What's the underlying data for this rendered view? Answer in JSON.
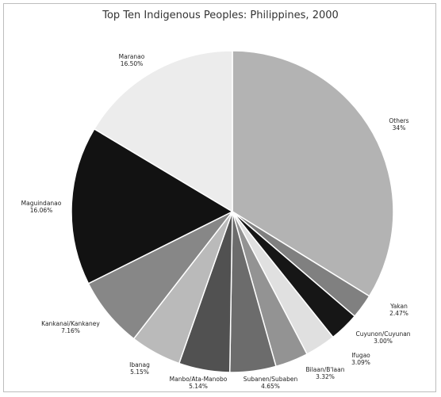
{
  "chart_data": {
    "type": "pie",
    "title": "Top Ten Indigenous Peoples: Philippines, 2000",
    "slices": [
      {
        "name": "Others",
        "value_label": "34%",
        "value": 34,
        "color": "#b3b3b3"
      },
      {
        "name": "Yakan",
        "value_label": "2.47%",
        "value": 2.47,
        "color": "#808080"
      },
      {
        "name": "Cuyunon/Cuyunan",
        "value_label": "3.00%",
        "value": 3.0,
        "color": "#161616"
      },
      {
        "name": "Ifugao",
        "value_label": "3.09%",
        "value": 3.09,
        "color": "#e0e0e0"
      },
      {
        "name": "Bilaan/B'laan",
        "value_label": "3.32%",
        "value": 3.32,
        "color": "#939393"
      },
      {
        "name": "Subanen/Subaben",
        "value_label": "4.65%",
        "value": 4.65,
        "color": "#6c6c6c"
      },
      {
        "name": "Manbo/Ata-Manobo",
        "value_label": "5.14%",
        "value": 5.14,
        "color": "#515151"
      },
      {
        "name": "Ibanag",
        "value_label": "5.15%",
        "value": 5.15,
        "color": "#bababa"
      },
      {
        "name": "Kankanai/Kankaney",
        "value_label": "7.16%",
        "value": 7.16,
        "color": "#878787"
      },
      {
        "name": "Maguindanao",
        "value_label": "16.06%",
        "value": 16.06,
        "color": "#121212"
      },
      {
        "name": "Maranao",
        "value_label": "16.50%",
        "value": 16.5,
        "color": "#ececec"
      }
    ]
  }
}
